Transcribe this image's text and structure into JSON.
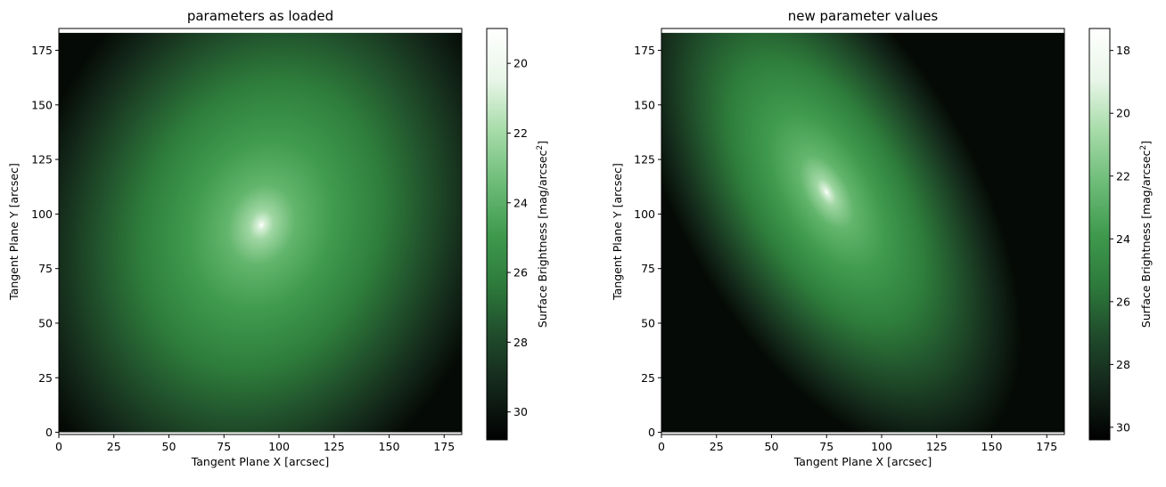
{
  "chart_data": [
    {
      "type": "heatmap",
      "title": "parameters as loaded",
      "xlabel": "Tangent Plane X [arcsec]",
      "ylabel": "Tangent Plane Y [arcsec]",
      "xlim": [
        0,
        183
      ],
      "ylim": [
        -1,
        185
      ],
      "data_extent": {
        "x": [
          0,
          183
        ],
        "y": [
          0,
          183
        ]
      },
      "xticks": [
        0,
        25,
        50,
        75,
        100,
        125,
        150,
        175
      ],
      "yticks": [
        0,
        25,
        50,
        75,
        100,
        125,
        150,
        175
      ],
      "center": {
        "x": 92,
        "y": 95
      },
      "axis_ratio": 0.8,
      "position_angle_deg": 70,
      "colorbar": {
        "label": "Surface Brightness [mag/arcsec",
        "label_superscript": "2",
        "label_suffix": "]",
        "range": [
          19,
          30.8
        ],
        "ticks": [
          20,
          22,
          24,
          26,
          28,
          30
        ],
        "reversed": true
      }
    },
    {
      "type": "heatmap",
      "title": "new parameter values",
      "xlabel": "Tangent Plane X [arcsec]",
      "ylabel": "Tangent Plane Y [arcsec]",
      "xlim": [
        0,
        183
      ],
      "ylim": [
        -1,
        185
      ],
      "data_extent": {
        "x": [
          0,
          183
        ],
        "y": [
          0,
          183
        ]
      },
      "xticks": [
        0,
        25,
        50,
        75,
        100,
        125,
        150,
        175
      ],
      "yticks": [
        0,
        25,
        50,
        75,
        100,
        125,
        150,
        175
      ],
      "center": {
        "x": 75,
        "y": 110
      },
      "axis_ratio": 0.5,
      "position_angle_deg": 120,
      "colorbar": {
        "label": "Surface Brightness [mag/arcsec",
        "label_superscript": "2",
        "label_suffix": "]",
        "range": [
          17.3,
          30.4
        ],
        "ticks": [
          18,
          20,
          22,
          24,
          26,
          28,
          30
        ],
        "reversed": true
      }
    }
  ],
  "colors": {
    "cmap": [
      "#000000",
      "#13251a",
      "#1f4a2b",
      "#2d7a3b",
      "#3f9a4e",
      "#6dbc78",
      "#a6dba8",
      "#e8f6e8",
      "#ffffff"
    ]
  }
}
